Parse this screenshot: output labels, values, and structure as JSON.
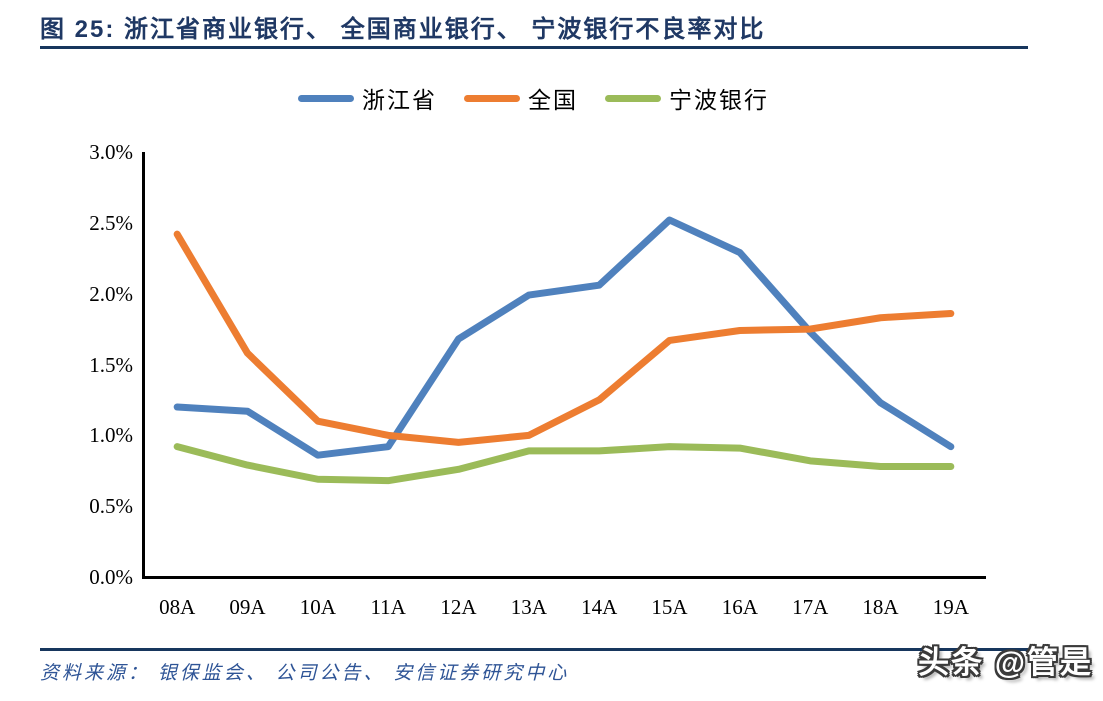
{
  "title": {
    "text": "图 25:  浙江省商业银行、 全国商业银行、 宁波银行不良率对比"
  },
  "source": "资料来源： 银保监会、 公司公告、 安信证券研究中心",
  "watermark": "头条 @管是",
  "theme": {
    "title_color": "#1F3864",
    "rule_color": "#17365D",
    "source_color": "#2E5496",
    "axis_color": "#000000",
    "background": "#ffffff"
  },
  "chart_data": {
    "type": "line",
    "title": "浙江省商业银行、全国商业银行、宁波银行不良率对比",
    "categories": [
      "08A",
      "09A",
      "10A",
      "11A",
      "12A",
      "13A",
      "14A",
      "15A",
      "16A",
      "17A",
      "18A",
      "19A"
    ],
    "series": [
      {
        "name": "浙江省",
        "color": "#4F81BD",
        "values": [
          1.2,
          1.17,
          0.86,
          0.92,
          1.68,
          1.99,
          2.06,
          2.52,
          2.29,
          1.73,
          1.23,
          0.92
        ]
      },
      {
        "name": "全国",
        "color": "#ED7D31",
        "values": [
          2.42,
          1.58,
          1.1,
          1.0,
          0.95,
          1.0,
          1.25,
          1.67,
          1.74,
          1.75,
          1.83,
          1.86
        ]
      },
      {
        "name": "宁波银行",
        "color": "#9BBB59",
        "values": [
          0.92,
          0.79,
          0.69,
          0.68,
          0.76,
          0.89,
          0.89,
          0.92,
          0.91,
          0.82,
          0.78,
          0.78
        ]
      }
    ],
    "xlabel": "",
    "ylabel": "",
    "ylim": [
      0,
      3
    ],
    "ytick_step": 0.5,
    "ytick_labels": [
      "0.0%",
      "0.5%",
      "1.0%",
      "1.5%",
      "2.0%",
      "2.5%",
      "3.0%"
    ],
    "unit": "percent",
    "grid": false,
    "legend_position": "top"
  }
}
